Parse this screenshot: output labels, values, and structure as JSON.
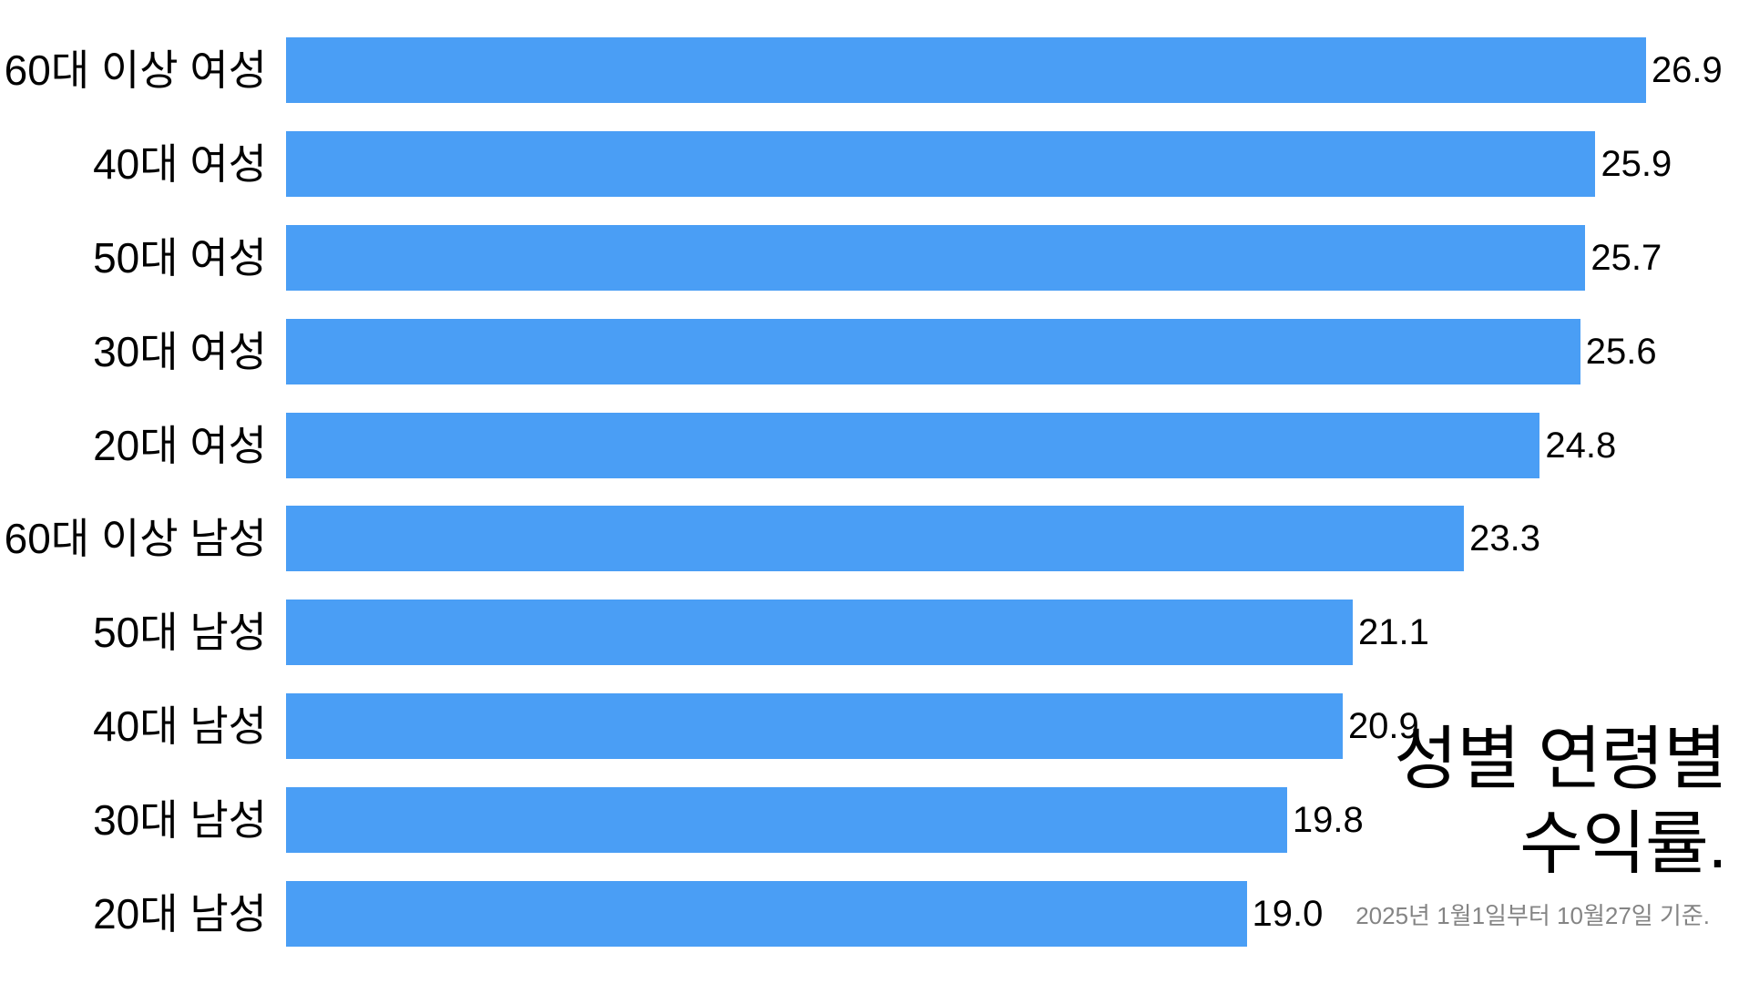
{
  "chart_data": {
    "type": "bar",
    "orientation": "horizontal",
    "title": "성별 연령별 수익률.",
    "title_lines": [
      "성별 연령별",
      "수익률."
    ],
    "subtitle": "2025년 1월1일부터 10월27일 기준.",
    "categories": [
      "60대 이상 여성",
      "40대 여성",
      "50대 여성",
      "30대 여성",
      "20대 여성",
      "60대 이상 남성",
      "50대 남성",
      "40대 남성",
      "30대 남성",
      "20대 남성"
    ],
    "values": [
      26.9,
      25.9,
      25.7,
      25.6,
      24.8,
      23.3,
      21.1,
      20.9,
      19.8,
      19.0
    ],
    "value_labels": [
      "26.9",
      "25.9",
      "25.7",
      "25.6",
      "24.8",
      "23.3",
      "21.1",
      "20.9",
      "19.8",
      "19.0"
    ],
    "xlabel": "",
    "ylabel": "",
    "xlim": [
      0,
      28.9
    ],
    "gridlines": false,
    "axis_ticks_visible": false,
    "legend": "none",
    "bar_color": "#4A9EF5",
    "text_color": "#000000",
    "subtitle_color": "#848484",
    "background_color": "#FFFFFF"
  }
}
